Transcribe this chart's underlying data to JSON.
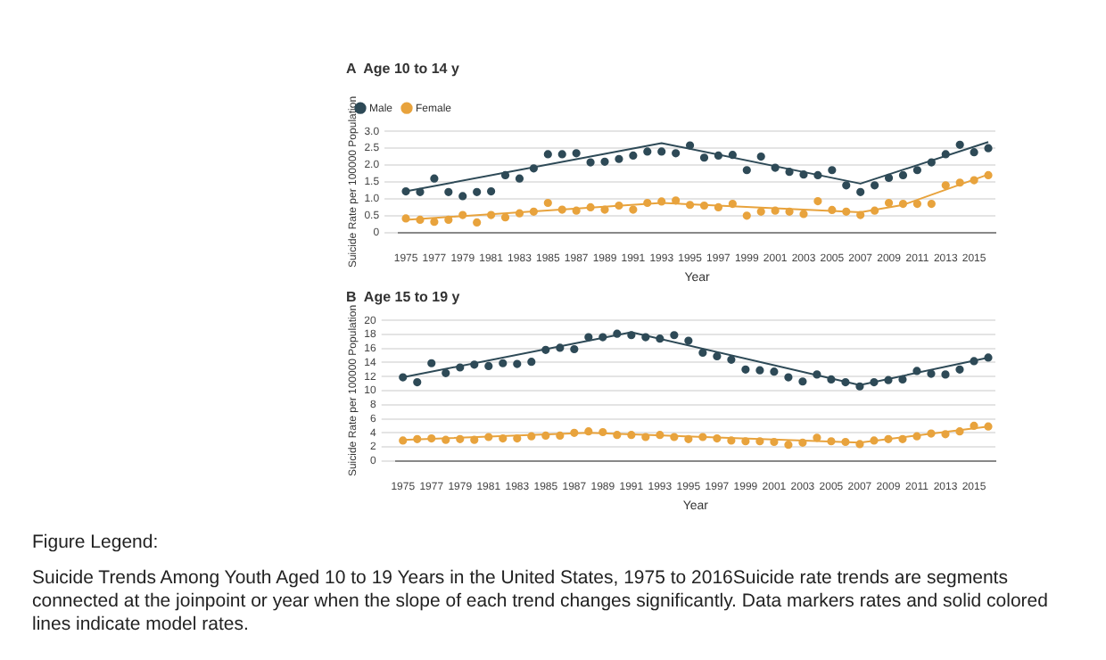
{
  "chart_data": [
    {
      "type": "scatter",
      "title": "A  Age 10 to 14 y",
      "xlabel": "Year",
      "ylabel": "Suicide Rate per 100000 Population",
      "x": [
        1975,
        1976,
        1977,
        1978,
        1979,
        1980,
        1981,
        1982,
        1983,
        1984,
        1985,
        1986,
        1987,
        1988,
        1989,
        1990,
        1991,
        1992,
        1993,
        1994,
        1995,
        1996,
        1997,
        1998,
        1999,
        2000,
        2001,
        2002,
        2003,
        2004,
        2005,
        2006,
        2007,
        2008,
        2009,
        2010,
        2011,
        2012,
        2013,
        2014,
        2015,
        2016
      ],
      "series": [
        {
          "name": "Male",
          "type": "scatter",
          "marker": "circle",
          "color": "#2e4a57",
          "values": [
            1.22,
            1.2,
            1.6,
            1.2,
            1.08,
            1.2,
            1.22,
            1.7,
            1.6,
            1.9,
            2.32,
            2.32,
            2.35,
            2.08,
            2.1,
            2.18,
            2.28,
            2.4,
            2.4,
            2.35,
            2.58,
            2.22,
            2.28,
            2.3,
            1.85,
            2.25,
            1.92,
            1.8,
            1.72,
            1.7,
            1.85,
            1.4,
            1.2,
            1.4,
            1.62,
            1.7,
            1.85,
            2.08,
            2.32,
            2.6,
            2.38,
            2.5
          ]
        },
        {
          "name": "Female",
          "type": "scatter",
          "marker": "circle",
          "color": "#e8a33d",
          "values": [
            0.42,
            0.38,
            0.32,
            0.38,
            0.52,
            0.3,
            0.52,
            0.45,
            0.57,
            0.62,
            0.88,
            0.68,
            0.65,
            0.75,
            0.68,
            0.8,
            0.68,
            0.88,
            0.92,
            0.95,
            0.82,
            0.8,
            0.75,
            0.85,
            0.5,
            0.62,
            0.65,
            0.62,
            0.55,
            0.93,
            0.67,
            0.62,
            0.52,
            0.65,
            0.88,
            0.85,
            0.85,
            0.85,
            1.4,
            1.48,
            1.55,
            1.7
          ]
        },
        {
          "type": "line",
          "marker": "none",
          "color": "#2e4a57",
          "x": [
            1975,
            1993,
            2007,
            2016
          ],
          "values": [
            1.22,
            2.65,
            1.45,
            2.68
          ]
        },
        {
          "type": "line",
          "marker": "none",
          "color": "#e8a33d",
          "x": [
            1975,
            1993,
            2007,
            2010,
            2016
          ],
          "values": [
            0.38,
            0.88,
            0.6,
            0.82,
            1.72
          ]
        }
      ],
      "xlim": [
        1974.5,
        2016.5
      ],
      "xticks": [
        1975,
        1977,
        1979,
        1981,
        1983,
        1985,
        1987,
        1989,
        1991,
        1993,
        1995,
        1997,
        1999,
        2001,
        2003,
        2005,
        2007,
        2009,
        2011,
        2013,
        2015
      ],
      "ylim": [
        0,
        3
      ],
      "yticks": [
        0,
        0.5,
        {
          "value": 1,
          "label": "1.0"
        },
        1.5,
        {
          "value": 2,
          "label": "2.0"
        },
        2.5,
        {
          "value": 3,
          "label": "3.0"
        }
      ],
      "grid": "y",
      "legend": "top left"
    },
    {
      "type": "scatter",
      "title": "B  Age 15 to 19 y",
      "xlabel": "Year",
      "ylabel": "Suicide Rate per 100000 Population",
      "x": [
        1975,
        1976,
        1977,
        1978,
        1979,
        1980,
        1981,
        1982,
        1983,
        1984,
        1985,
        1986,
        1987,
        1988,
        1989,
        1990,
        1991,
        1992,
        1993,
        1994,
        1995,
        1996,
        1997,
        1998,
        1999,
        2000,
        2001,
        2002,
        2003,
        2004,
        2005,
        2006,
        2007,
        2008,
        2009,
        2010,
        2011,
        2012,
        2013,
        2014,
        2015,
        2016
      ],
      "series": [
        {
          "type": "scatter",
          "marker": "circle",
          "color": "#2e4a57",
          "values": [
            11.9,
            11.2,
            13.9,
            12.5,
            13.3,
            13.7,
            13.5,
            13.9,
            13.8,
            14.1,
            15.8,
            16.1,
            15.9,
            17.6,
            17.6,
            18.1,
            17.9,
            17.6,
            17.4,
            17.9,
            17.1,
            15.4,
            14.9,
            14.4,
            13.0,
            12.9,
            12.7,
            11.9,
            11.3,
            12.3,
            11.6,
            11.2,
            10.6,
            11.2,
            11.5,
            11.6,
            12.8,
            12.4,
            12.3,
            13.0,
            14.2,
            14.7
          ]
        },
        {
          "type": "scatter",
          "marker": "circle",
          "color": "#e8a33d",
          "values": [
            2.9,
            3.1,
            3.2,
            3.0,
            3.1,
            3.0,
            3.4,
            3.2,
            3.2,
            3.5,
            3.6,
            3.6,
            4.0,
            4.2,
            4.1,
            3.7,
            3.7,
            3.4,
            3.7,
            3.4,
            3.1,
            3.4,
            3.2,
            2.9,
            2.8,
            2.8,
            2.7,
            2.3,
            2.6,
            3.3,
            2.8,
            2.7,
            2.4,
            2.9,
            3.1,
            3.1,
            3.5,
            3.9,
            3.8,
            4.2,
            5.0,
            4.9
          ]
        },
        {
          "type": "line",
          "marker": "none",
          "color": "#2e4a57",
          "x": [
            1975,
            1991,
            2007,
            2016
          ],
          "values": [
            11.9,
            18.3,
            10.8,
            14.7
          ]
        },
        {
          "type": "line",
          "marker": "none",
          "color": "#e8a33d",
          "x": [
            1975,
            1988,
            2007,
            2016
          ],
          "values": [
            3.0,
            4.0,
            2.6,
            4.9
          ]
        }
      ],
      "xlim": [
        1974.5,
        2016.5
      ],
      "xticks": [
        1975,
        1977,
        1979,
        1981,
        1983,
        1985,
        1987,
        1989,
        1991,
        1993,
        1995,
        1997,
        1999,
        2001,
        2003,
        2005,
        2007,
        2009,
        2011,
        2013,
        2015
      ],
      "ylim": [
        0,
        20
      ],
      "yticks": [
        0,
        2,
        4,
        6,
        8,
        10,
        12,
        14,
        16,
        18,
        20
      ],
      "grid": "y",
      "annotations": [
        "Figure Legend:",
        "Suicide Trends Among Youth Aged 10 to 19 Years in the United States, 1975 to 2016Suicide rate trends are segments connected at the joinpoint or year when the slope of each trend changes significantly. Data markers rates and solid colored lines indicate model rates."
      ]
    }
  ]
}
